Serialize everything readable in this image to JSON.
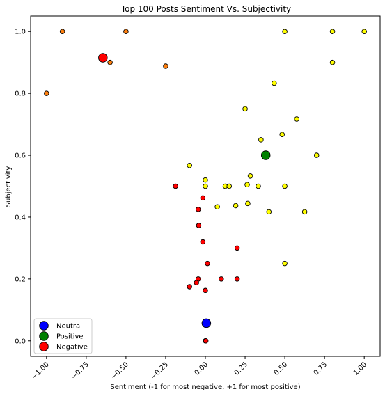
{
  "chart_data": {
    "type": "scatter",
    "title": "Top 100 Posts Sentiment Vs. Subjectivity",
    "xlabel": "Sentiment (-1 for most negative, +1 for most positive)",
    "ylabel": "Subjectivity",
    "xlim": [
      -1.1,
      1.1
    ],
    "ylim": [
      -0.05,
      1.05
    ],
    "xticks": [
      -1.0,
      -0.75,
      -0.5,
      -0.25,
      0.0,
      0.25,
      0.5,
      0.75,
      1.0
    ],
    "xtick_labels": [
      "−1.00",
      "−0.75",
      "−0.50",
      "−0.25",
      "0.00",
      "0.25",
      "0.50",
      "0.75",
      "1.00"
    ],
    "yticks": [
      0.0,
      0.2,
      0.4,
      0.6,
      0.8,
      1.0
    ],
    "ytick_labels": [
      "0.0",
      "0.2",
      "0.4",
      "0.6",
      "0.8",
      "1.0"
    ],
    "grid": false,
    "legend_position": "bottom-left",
    "legend": [
      {
        "label": "Neutral",
        "color": "#0000ff"
      },
      {
        "label": "Positive",
        "color": "#008000"
      },
      {
        "label": "Negative",
        "color": "#ff0000"
      }
    ],
    "series": [
      {
        "group": "strongly-negative",
        "color": "#ff7f0e",
        "points": [
          [
            -1.0,
            0.8
          ],
          [
            -0.9,
            1.0
          ],
          [
            -0.5,
            1.0
          ],
          [
            -0.6,
            0.9
          ],
          [
            -0.25,
            0.888
          ]
        ]
      },
      {
        "group": "positive",
        "color": "#ffff00",
        "points": [
          [
            0.5,
            1.0
          ],
          [
            0.8,
            1.0
          ],
          [
            1.0,
            1.0
          ],
          [
            0.8,
            0.9
          ],
          [
            0.433,
            0.833
          ],
          [
            0.25,
            0.75
          ],
          [
            0.575,
            0.717
          ],
          [
            0.483,
            0.667
          ],
          [
            0.35,
            0.65
          ],
          [
            0.7,
            0.6
          ],
          [
            -0.1,
            0.567
          ],
          [
            0.0,
            0.52
          ],
          [
            0.283,
            0.533
          ],
          [
            0.0,
            0.5
          ],
          [
            0.125,
            0.5
          ],
          [
            0.15,
            0.5
          ],
          [
            0.263,
            0.505
          ],
          [
            0.333,
            0.5
          ],
          [
            0.5,
            0.5
          ],
          [
            0.267,
            0.444
          ],
          [
            0.075,
            0.433
          ],
          [
            0.191,
            0.437
          ],
          [
            0.4,
            0.417
          ],
          [
            0.625,
            0.417
          ],
          [
            0.5,
            0.25
          ]
        ]
      },
      {
        "group": "negative",
        "color": "#ff0000",
        "points": [
          [
            -0.188,
            0.5
          ],
          [
            -0.016,
            0.462
          ],
          [
            -0.045,
            0.425
          ],
          [
            -0.042,
            0.373
          ],
          [
            -0.016,
            0.32
          ],
          [
            0.2,
            0.3
          ],
          [
            0.013,
            0.25
          ],
          [
            -0.045,
            0.2
          ],
          [
            -0.056,
            0.188
          ],
          [
            -0.1,
            0.175
          ],
          [
            0.1,
            0.2
          ],
          [
            0.2,
            0.2
          ],
          [
            0.0,
            0.163
          ],
          [
            0.0,
            0.0
          ],
          [
            0.003,
            0.0
          ]
        ]
      },
      {
        "group": "centroids",
        "points": [
          {
            "x": 0.006,
            "y": 0.057,
            "color": "#0000ff"
          },
          {
            "x": 0.38,
            "y": 0.6,
            "color": "#008000"
          },
          {
            "x": -0.645,
            "y": 0.915,
            "color": "#ff0000"
          }
        ]
      }
    ]
  }
}
